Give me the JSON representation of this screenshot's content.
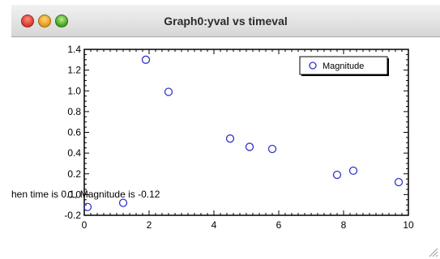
{
  "window": {
    "title": "Graph0:yval vs timeval"
  },
  "colors": {
    "marker": "#3333cc",
    "axis": "#000000"
  },
  "chart_data": {
    "type": "scatter",
    "title": "",
    "xlabel": "",
    "ylabel": "",
    "xlim": [
      0,
      10
    ],
    "ylim": [
      -0.2,
      1.4
    ],
    "x_ticks": [
      "0",
      "2",
      "4",
      "6",
      "8",
      "10"
    ],
    "y_ticks": [
      "-0.2",
      "0.0",
      "0.2",
      "0.4",
      "0.6",
      "0.8",
      "1.0",
      "1.2",
      "1.4"
    ],
    "grid": false,
    "legend": "top-right",
    "series": [
      {
        "name": "Magnitude",
        "x": [
          0.1,
          1.2,
          1.9,
          2.6,
          4.5,
          5.1,
          5.8,
          7.8,
          8.3,
          9.7
        ],
        "y": [
          -0.12,
          -0.08,
          1.3,
          0.99,
          0.54,
          0.46,
          0.44,
          0.19,
          0.23,
          0.12
        ]
      }
    ]
  },
  "annotation": {
    "text": "hen time is 0.1, Magnitude is -0.12"
  }
}
